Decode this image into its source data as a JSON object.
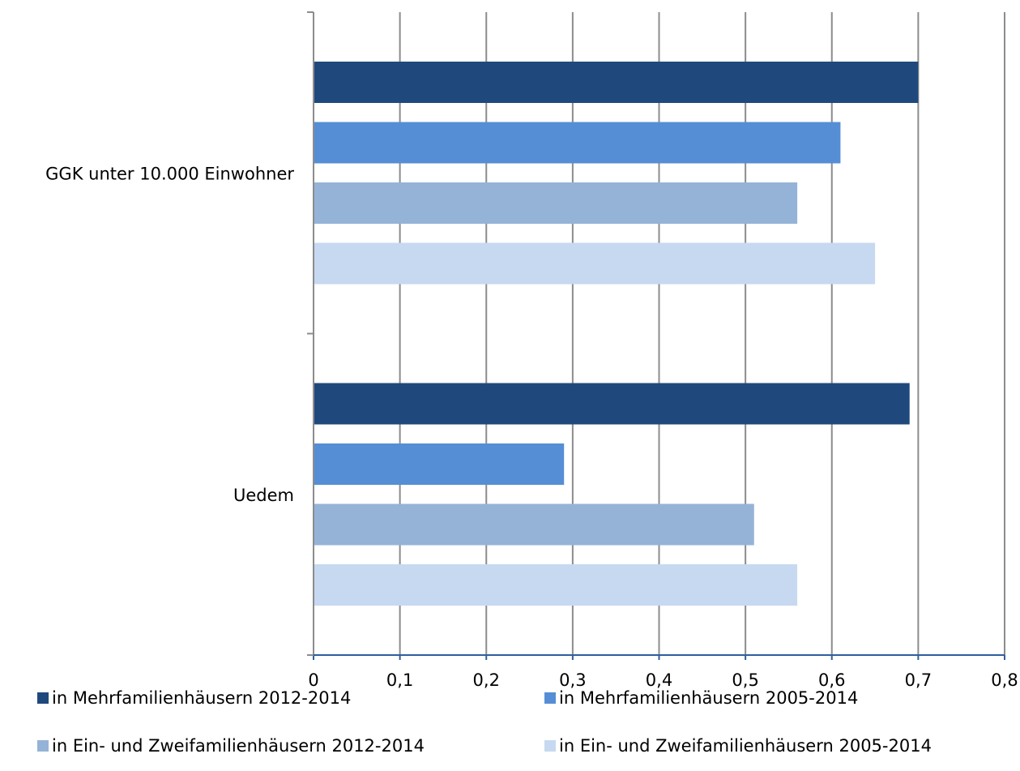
{
  "chart_data": {
    "type": "bar",
    "orientation": "horizontal",
    "categories": [
      "GGK unter 10.000 Einwohner",
      "Uedem"
    ],
    "series": [
      {
        "name": "in Mehrfamilienhäusern 2012-2014",
        "color": "#1f497d",
        "values": [
          0.7,
          0.69
        ]
      },
      {
        "name": "in Mehrfamilienhäusern 2005-2014",
        "color": "#558ed5",
        "values": [
          0.61,
          0.29
        ]
      },
      {
        "name": "in Ein- und Zweifamilienhäusern 2012-2014",
        "color": "#95b3d7",
        "values": [
          0.56,
          0.51
        ]
      },
      {
        "name": "in Ein- und Zweifamilienhäusern 2005-2014",
        "color": "#c6d9f0",
        "values": [
          0.65,
          0.56
        ]
      }
    ],
    "xlim": [
      0,
      0.8
    ],
    "xticks": [
      "0",
      "0,1",
      "0,2",
      "0,3",
      "0,4",
      "0,5",
      "0,6",
      "0,7",
      "0,8"
    ],
    "grid": true,
    "legend_position": "bottom",
    "title": "",
    "xlabel": "",
    "ylabel": ""
  }
}
